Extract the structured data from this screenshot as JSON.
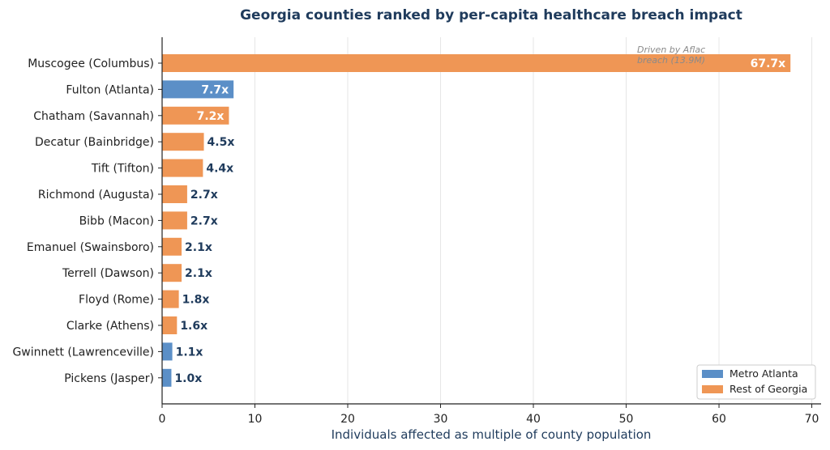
{
  "chart_data": {
    "type": "bar",
    "orientation": "horizontal",
    "title": "Georgia counties ranked by per-capita healthcare breach impact",
    "xlabel": "Individuals affected as multiple of county population",
    "ylabel": "",
    "xlim": [
      0,
      71
    ],
    "xticks": [
      "0",
      "10",
      "20",
      "30",
      "40",
      "50",
      "60",
      "70"
    ],
    "grid": "vertical",
    "legend_position": "bottom-right",
    "categories": [
      "Muscogee (Columbus)",
      "Fulton (Atlanta)",
      "Chatham (Savannah)",
      "Decatur (Bainbridge)",
      "Tift (Tifton)",
      "Richmond (Augusta)",
      "Bibb (Macon)",
      "Emanuel (Swainsboro)",
      "Terrell (Dawson)",
      "Floyd (Rome)",
      "Clarke (Athens)",
      "Gwinnett (Lawrenceville)",
      "Pickens (Jasper)"
    ],
    "values": [
      67.7,
      7.7,
      7.2,
      4.5,
      4.4,
      2.7,
      2.7,
      2.1,
      2.1,
      1.8,
      1.6,
      1.1,
      1.0
    ],
    "value_labels": [
      "67.7x",
      "7.7x",
      "7.2x",
      "4.5x",
      "4.4x",
      "2.7x",
      "2.7x",
      "2.1x",
      "2.1x",
      "1.8x",
      "1.6x",
      "1.1x",
      "1.0x"
    ],
    "groups": [
      "Rest of Georgia",
      "Metro Atlanta",
      "Rest of Georgia",
      "Rest of Georgia",
      "Rest of Georgia",
      "Rest of Georgia",
      "Rest of Georgia",
      "Rest of Georgia",
      "Rest of Georgia",
      "Rest of Georgia",
      "Rest of Georgia",
      "Metro Atlanta",
      "Metro Atlanta"
    ],
    "legend": [
      {
        "name": "Metro Atlanta",
        "color": "#5b8fc7"
      },
      {
        "name": "Rest of Georgia",
        "color": "#ef9655"
      }
    ],
    "annotation": {
      "lines": [
        "Driven by Aflac",
        "breach (13.9M)"
      ],
      "target": "Muscogee (Columbus)"
    },
    "colors": {
      "title": "#1f3b5c",
      "value_label": "#1f3b5c",
      "value_label_inside": "#ffffff",
      "axis": "#222222",
      "grid": "#e6e6e6"
    }
  }
}
